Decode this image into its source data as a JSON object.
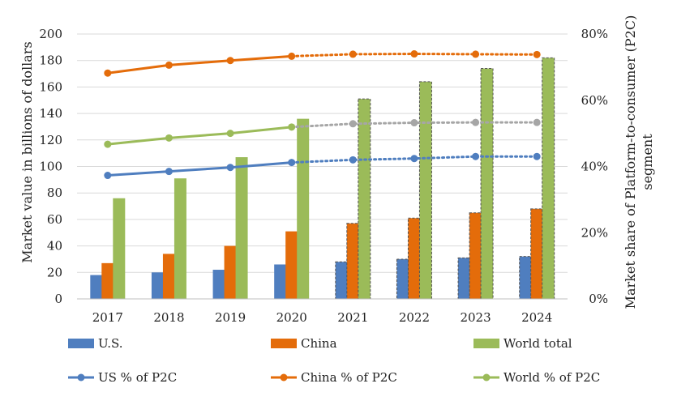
{
  "chart_data": {
    "type": "bar",
    "categories": [
      "2017",
      "2018",
      "2019",
      "2020",
      "2021",
      "2022",
      "2023",
      "2024"
    ],
    "forecast_from_index": 4,
    "series": [
      {
        "name": "U.S.",
        "kind": "bar",
        "axis": "left",
        "color": "#4F7EBF",
        "values": [
          18,
          20,
          22,
          26,
          28,
          30,
          31,
          32
        ]
      },
      {
        "name": "China",
        "kind": "bar",
        "axis": "left",
        "color": "#E46C0A",
        "values": [
          27,
          34,
          40,
          51,
          57,
          61,
          65,
          68
        ]
      },
      {
        "name": "World total",
        "kind": "bar",
        "axis": "left",
        "color": "#9BBB59",
        "values": [
          76,
          91,
          107,
          136,
          151,
          164,
          174,
          182
        ]
      },
      {
        "name": "US % of P2C",
        "kind": "line",
        "axis": "right",
        "color": "#4F7EBF",
        "values": [
          37.3,
          38.5,
          39.7,
          41.2,
          42.0,
          42.4,
          43.0,
          43.0
        ]
      },
      {
        "name": "China % of P2C",
        "kind": "line",
        "axis": "right",
        "color": "#E46C0A",
        "values": [
          68.2,
          70.6,
          72.0,
          73.3,
          73.9,
          74.0,
          73.9,
          73.8
        ]
      },
      {
        "name": "World % of P2C",
        "kind": "line",
        "axis": "right",
        "color": "#9BBB59",
        "forecast_color": "#A6A6A6",
        "values": [
          46.7,
          48.6,
          50.0,
          51.9,
          52.9,
          53.2,
          53.3,
          53.3
        ]
      }
    ],
    "ylabel": "Market value in billions of dollars",
    "y2label": "Market share of Platform-to-consumer (P2C) segment",
    "ylim": [
      0,
      200
    ],
    "yticks": [
      "0",
      "20",
      "40",
      "60",
      "80",
      "100",
      "120",
      "140",
      "160",
      "180",
      "200"
    ],
    "y2lim": [
      0,
      80
    ],
    "y2ticks": [
      "0%",
      "20%",
      "40%",
      "60%",
      "80%"
    ],
    "grid": true,
    "legend_position": "bottom"
  }
}
